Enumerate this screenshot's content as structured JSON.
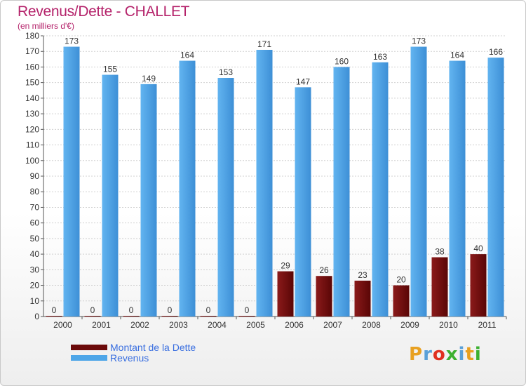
{
  "title": "Revenus/Dette - CHALLET",
  "subtitle": "(en milliers d'€)",
  "colors": {
    "revenus": "#4ea6e8",
    "dette": "#6b0a0a",
    "title": "#b4226a",
    "legend_text": "#3a6fe0"
  },
  "legend": [
    {
      "label": "Montant de la Dette",
      "color_key": "dette"
    },
    {
      "label": "Revenus",
      "color_key": "revenus"
    }
  ],
  "logo": {
    "text": "Proxiti",
    "letter_colors": [
      "#e8a020",
      "#5aa0d8",
      "#e03020",
      "#3cb030",
      "#5aa0d8",
      "#e8a020",
      "#3cb030"
    ]
  },
  "chart_data": {
    "type": "bar",
    "title": "Revenus/Dette - CHALLET",
    "subtitle": "(en milliers d'€)",
    "categories": [
      "2000",
      "2001",
      "2002",
      "2003",
      "2004",
      "2005",
      "2006",
      "2007",
      "2008",
      "2009",
      "2010",
      "2011"
    ],
    "series": [
      {
        "name": "Montant de la Dette",
        "values": [
          0,
          0,
          0,
          0,
          0,
          0,
          29,
          26,
          23,
          20,
          38,
          40
        ]
      },
      {
        "name": "Revenus",
        "values": [
          173,
          155,
          149,
          164,
          153,
          171,
          147,
          160,
          163,
          173,
          164,
          166
        ]
      }
    ],
    "ylim": [
      0,
      180
    ],
    "yticks": [
      0,
      10,
      20,
      30,
      40,
      50,
      60,
      70,
      80,
      90,
      100,
      110,
      120,
      130,
      140,
      150,
      160,
      170,
      180
    ],
    "grid": true,
    "legend_position": "bottom-left"
  }
}
